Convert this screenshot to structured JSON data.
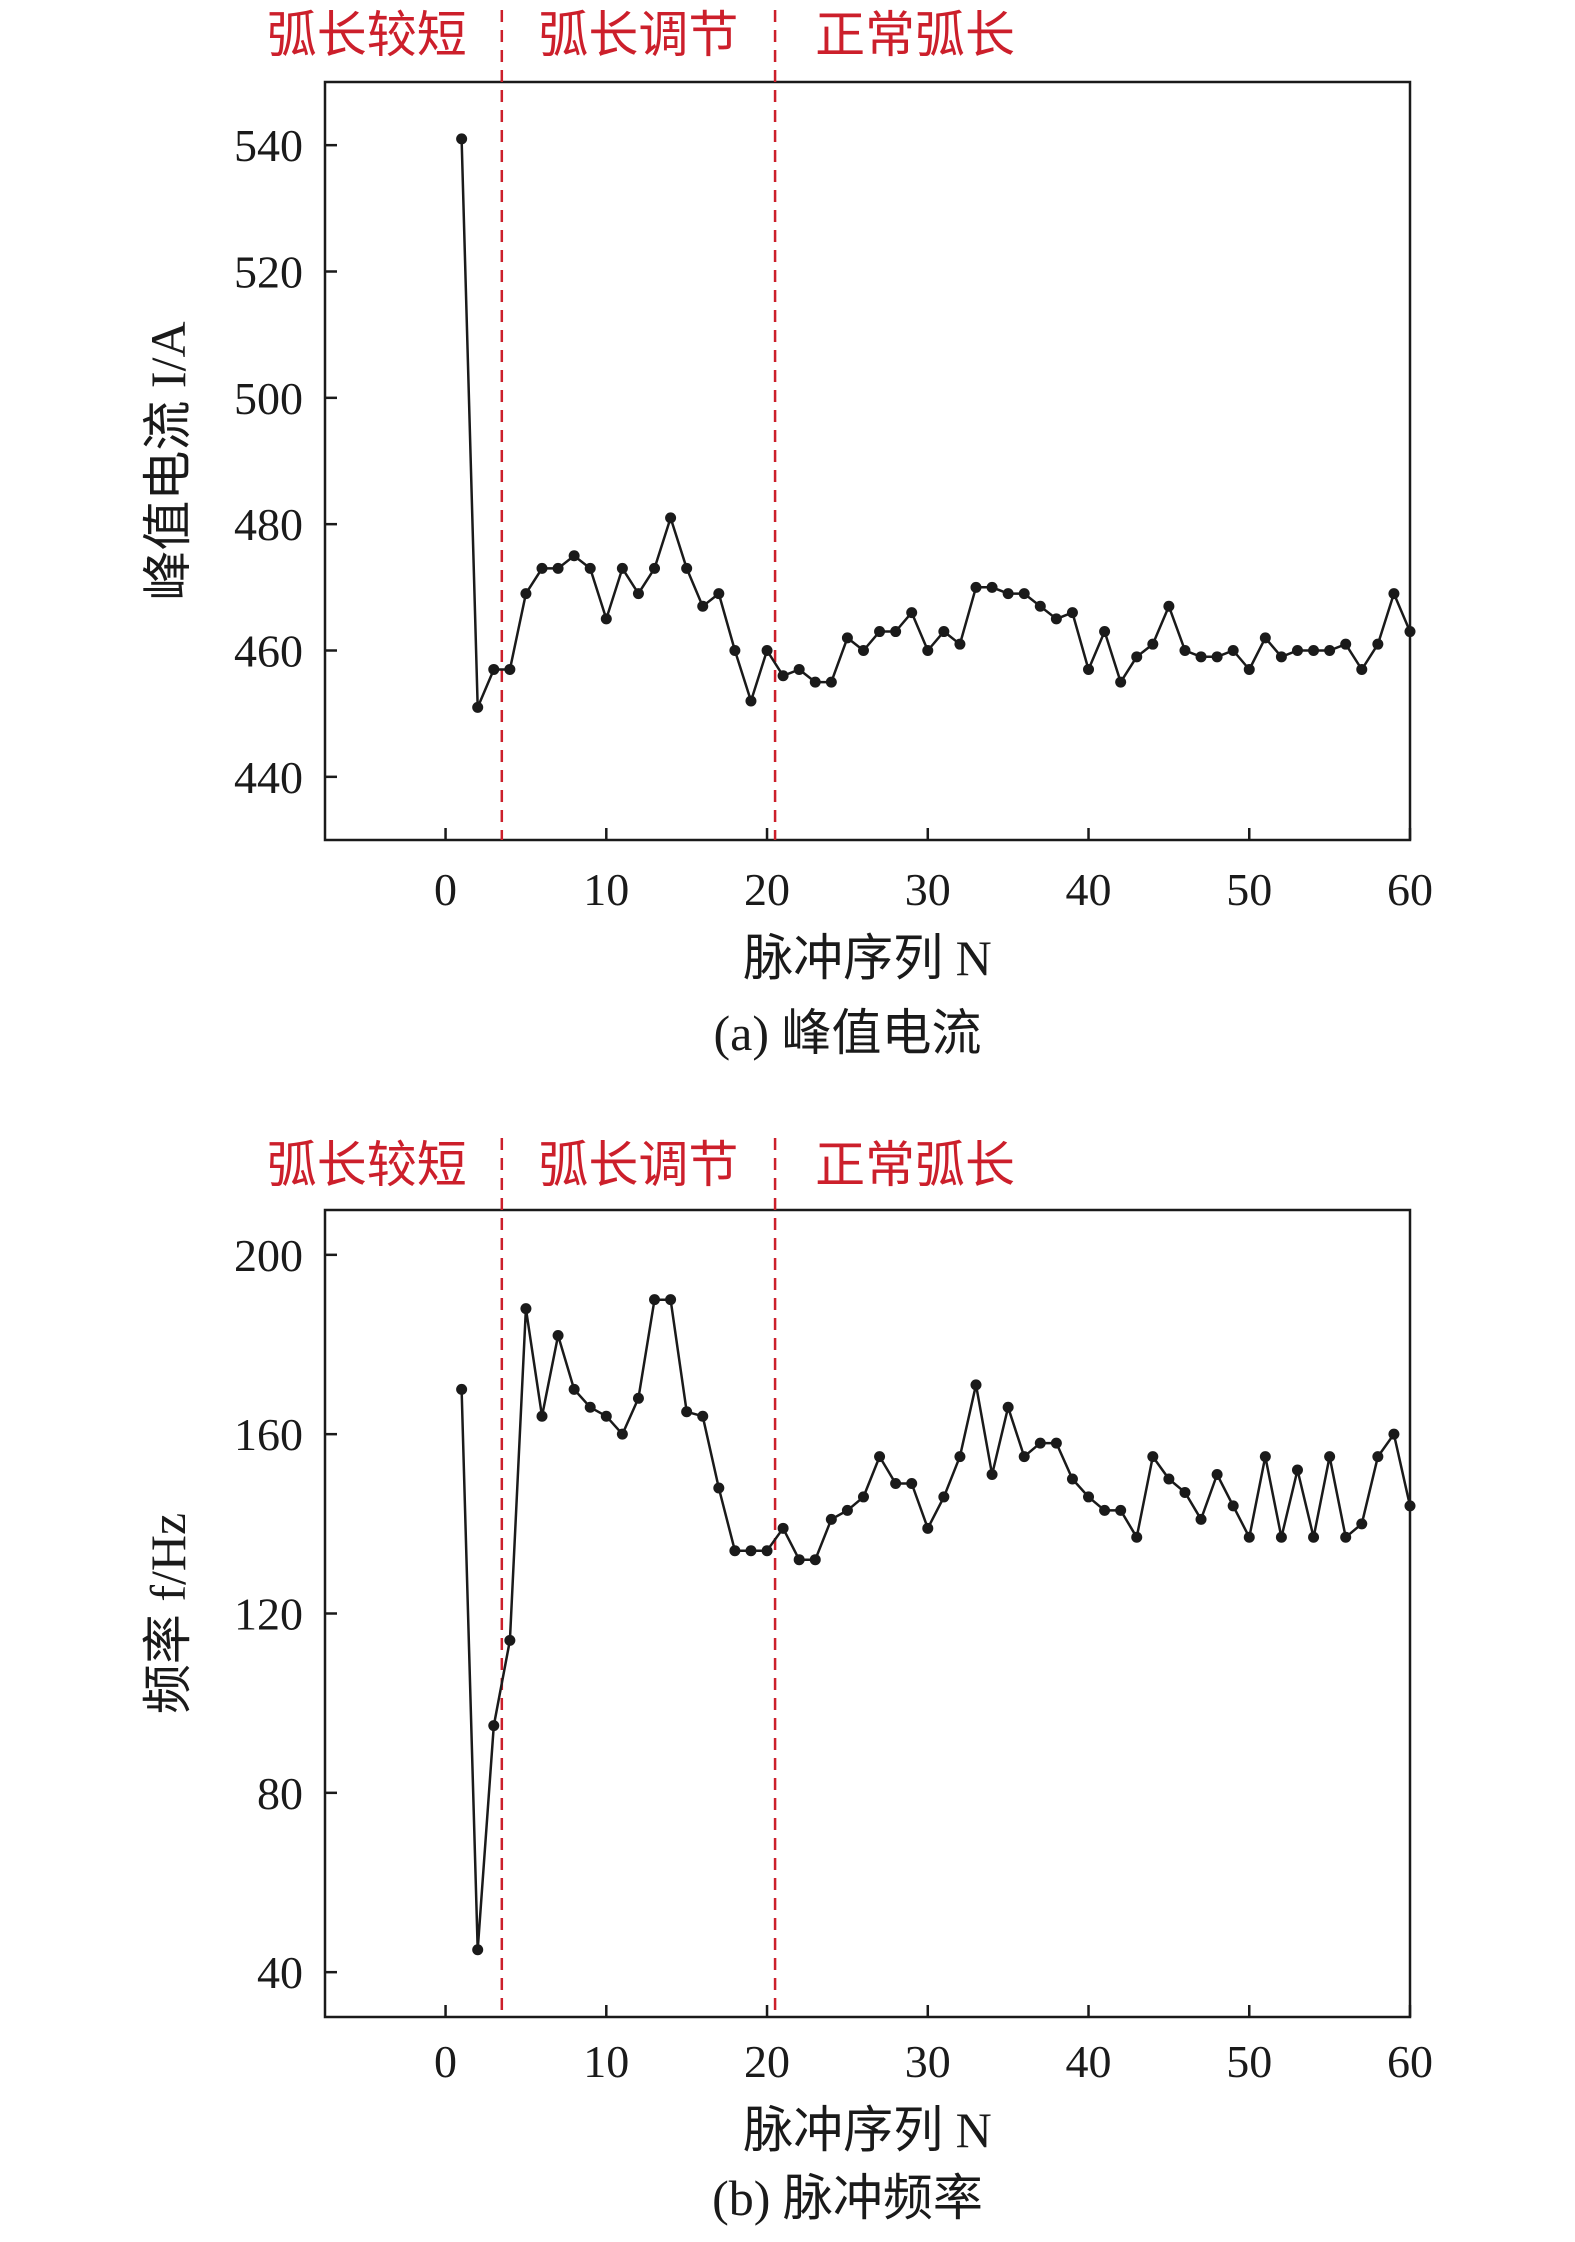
{
  "colors": {
    "line": "#1a1a1a",
    "region_divider": "#cc1f2b",
    "region_text": "#cc1f2b"
  },
  "chart_data": [
    {
      "type": "line",
      "caption": "(a) 峰值电流",
      "xlabel": "脉冲序列 N",
      "ylabel": "峰值电流 I/A",
      "xlim": [
        -7.5,
        60
      ],
      "ylim": [
        430,
        550
      ],
      "xticks": [
        0,
        10,
        20,
        30,
        40,
        50,
        60
      ],
      "yticks": [
        440,
        460,
        480,
        500,
        520,
        540
      ],
      "grid": false,
      "regions": [
        {
          "label": "弧长较短"
        },
        {
          "label": "弧长调节"
        },
        {
          "label": "正常弧长"
        }
      ],
      "region_dividers": [
        3.5,
        20.5
      ],
      "x": [
        1,
        2,
        3,
        4,
        5,
        6,
        7,
        8,
        9,
        10,
        11,
        12,
        13,
        14,
        15,
        16,
        17,
        18,
        19,
        20,
        21,
        22,
        23,
        24,
        25,
        26,
        27,
        28,
        29,
        30,
        31,
        32,
        33,
        34,
        35,
        36,
        37,
        38,
        39,
        40,
        41,
        42,
        43,
        44,
        45,
        46,
        47,
        48,
        49,
        50,
        51,
        52,
        53,
        54,
        55,
        56,
        57,
        58,
        59,
        60
      ],
      "series": [
        {
          "values": [
            541,
            451,
            457,
            457,
            469,
            473,
            473,
            475,
            473,
            465,
            473,
            469,
            473,
            481,
            473,
            467,
            469,
            460,
            452,
            460,
            456,
            457,
            455,
            455,
            462,
            460,
            463,
            463,
            466,
            460,
            463,
            461,
            470,
            470,
            469,
            469,
            467,
            465,
            466,
            457,
            463,
            455,
            459,
            461,
            467,
            460,
            459,
            459,
            460,
            457,
            462,
            459,
            460,
            460,
            460,
            461,
            457,
            461,
            469,
            463
          ]
        }
      ]
    },
    {
      "type": "line",
      "caption": "(b) 脉冲频率",
      "xlabel": "脉冲序列 N",
      "ylabel": "频率 f/Hz",
      "xlim": [
        -7.5,
        60
      ],
      "ylim": [
        30,
        210
      ],
      "xticks": [
        0,
        10,
        20,
        30,
        40,
        50,
        60
      ],
      "yticks": [
        40,
        80,
        120,
        160,
        200
      ],
      "grid": false,
      "regions": [
        {
          "label": "弧长较短"
        },
        {
          "label": "弧长调节"
        },
        {
          "label": "正常弧长"
        }
      ],
      "region_dividers": [
        3.5,
        20.5
      ],
      "x": [
        1,
        2,
        3,
        4,
        5,
        6,
        7,
        8,
        9,
        10,
        11,
        12,
        13,
        14,
        15,
        16,
        17,
        18,
        19,
        20,
        21,
        22,
        23,
        24,
        25,
        26,
        27,
        28,
        29,
        30,
        31,
        32,
        33,
        34,
        35,
        36,
        37,
        38,
        39,
        40,
        41,
        42,
        43,
        44,
        45,
        46,
        47,
        48,
        49,
        50,
        51,
        52,
        53,
        54,
        55,
        56,
        57,
        58,
        59,
        60
      ],
      "series": [
        {
          "values": [
            170,
            45,
            95,
            114,
            188,
            164,
            182,
            170,
            166,
            164,
            160,
            168,
            190,
            190,
            165,
            164,
            148,
            134,
            134,
            134,
            139,
            132,
            132,
            141,
            143,
            146,
            155,
            149,
            149,
            139,
            146,
            155,
            171,
            151,
            166,
            155,
            158,
            158,
            150,
            146,
            143,
            143,
            137,
            155,
            150,
            147,
            141,
            151,
            144,
            137,
            155,
            137,
            152,
            137,
            155,
            137,
            140,
            155,
            160,
            144
          ]
        }
      ]
    }
  ]
}
